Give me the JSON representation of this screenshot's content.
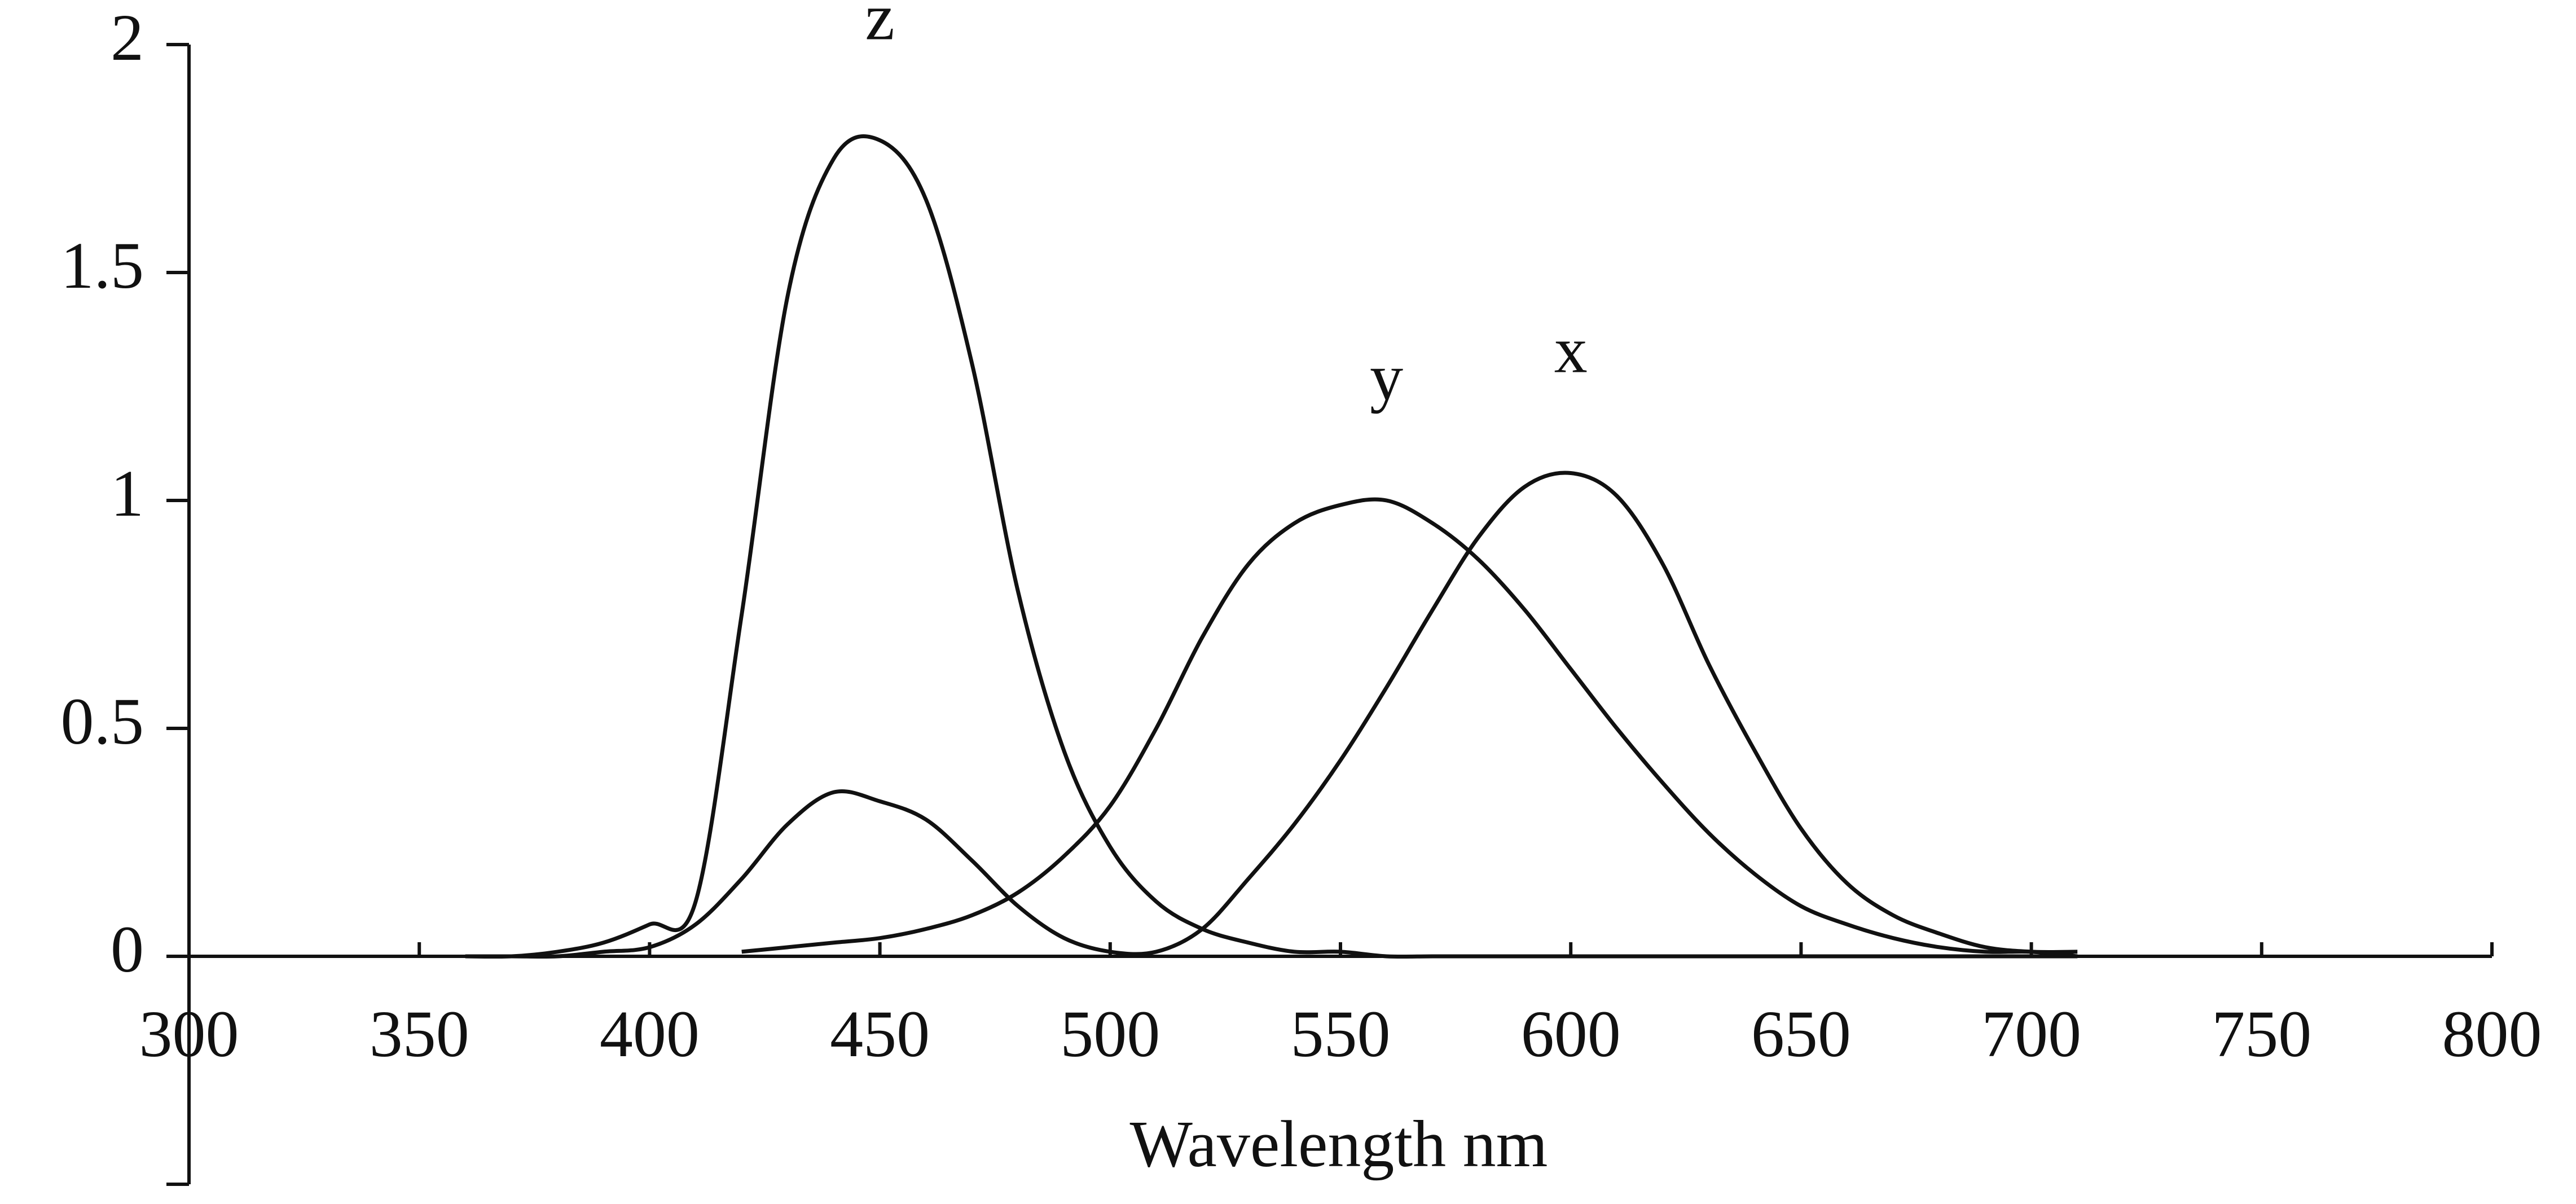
{
  "chart_data": {
    "type": "line",
    "x_label": "Wavelength nm",
    "x": [
      360,
      370,
      380,
      390,
      400,
      410,
      420,
      430,
      440,
      450,
      460,
      470,
      480,
      490,
      500,
      510,
      520,
      530,
      540,
      550,
      560,
      570,
      580,
      590,
      600,
      610,
      620,
      630,
      640,
      650,
      660,
      670,
      680,
      690,
      700,
      710
    ],
    "series": [
      {
        "name": "z",
        "color": "#111111",
        "values": [
          0.0,
          0.0,
          0.01,
          0.03,
          0.07,
          0.12,
          0.75,
          1.45,
          1.75,
          1.79,
          1.66,
          1.3,
          0.8,
          0.45,
          0.24,
          0.12,
          0.06,
          0.03,
          0.01,
          0.01,
          0.0,
          0.0,
          0.0,
          0.0,
          0.0,
          0.0,
          0.0,
          0.0,
          0.0,
          0.0,
          0.0,
          0.0,
          0.0,
          0.0,
          0.0,
          0.0
        ]
      },
      {
        "name": "y",
        "color": "#111111",
        "values": [
          null,
          null,
          null,
          null,
          null,
          null,
          0.01,
          0.02,
          0.03,
          0.04,
          0.06,
          0.09,
          0.14,
          0.22,
          0.33,
          0.5,
          0.7,
          0.86,
          0.95,
          0.99,
          1.0,
          0.95,
          0.87,
          0.76,
          0.63,
          0.5,
          0.38,
          0.27,
          0.18,
          0.11,
          0.07,
          0.04,
          0.02,
          0.01,
          0.01,
          0.0
        ]
      },
      {
        "name": "x",
        "color": "#111111",
        "values": [
          0.0,
          0.0,
          0.0,
          0.01,
          0.02,
          0.07,
          0.17,
          0.29,
          0.36,
          0.34,
          0.3,
          0.21,
          0.11,
          0.04,
          0.01,
          0.01,
          0.06,
          0.17,
          0.29,
          0.43,
          0.59,
          0.76,
          0.92,
          1.03,
          1.06,
          1.01,
          0.86,
          0.64,
          0.45,
          0.28,
          0.16,
          0.09,
          0.05,
          0.02,
          0.01,
          0.01
        ]
      }
    ],
    "xlim": [
      300,
      800
    ],
    "xticks": [
      300,
      350,
      400,
      450,
      500,
      550,
      600,
      650,
      700,
      750,
      800
    ],
    "ylim": [
      -0.5,
      2
    ],
    "yticks": [
      0,
      0.5,
      1,
      1.5,
      2
    ],
    "grid": false
  }
}
